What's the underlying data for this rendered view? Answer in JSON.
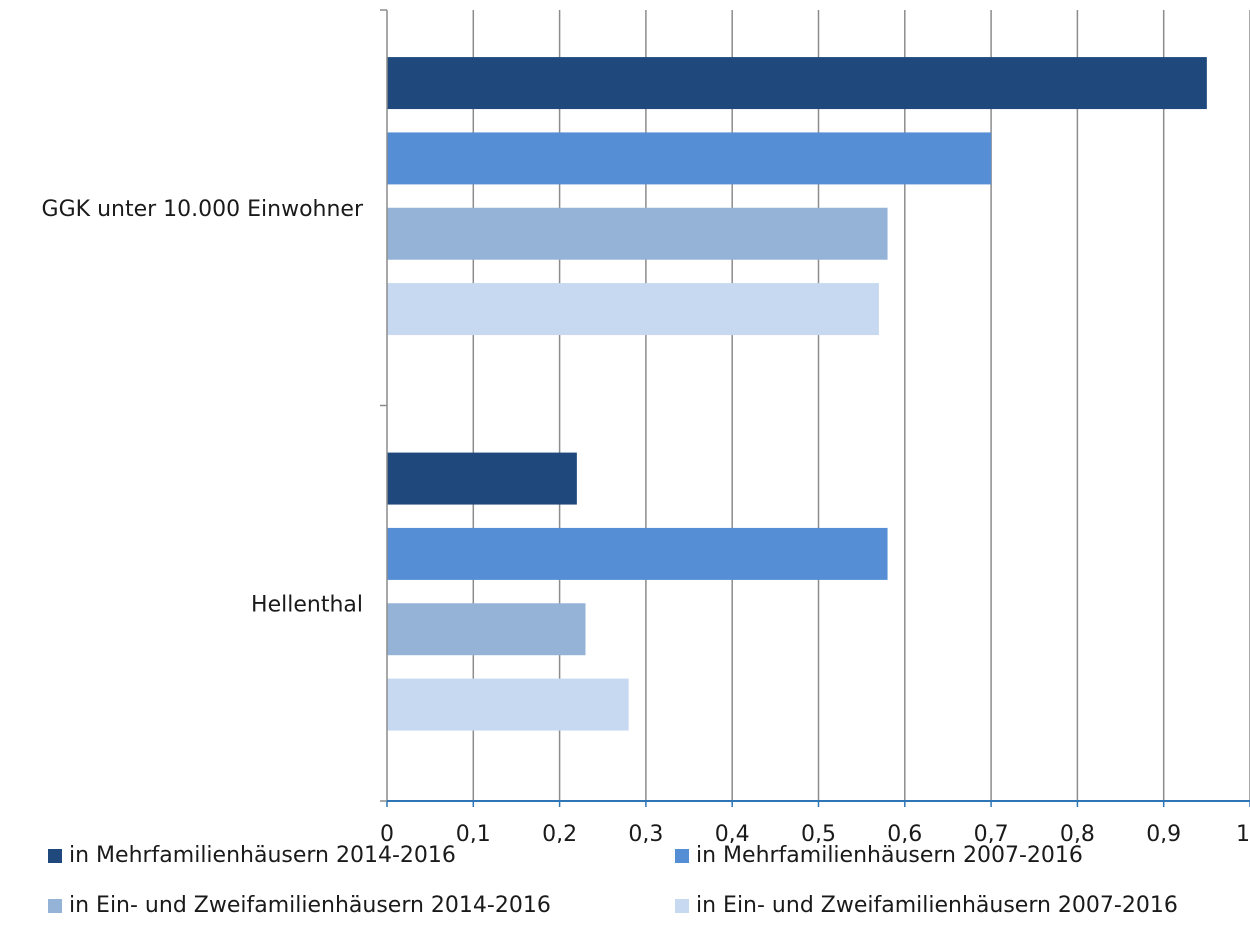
{
  "chart_data": {
    "type": "bar",
    "orientation": "horizontal",
    "categories": [
      "GGK unter 10.000 Einwohner",
      "Hellenthal"
    ],
    "series": [
      {
        "name": "in Mehrfamilienhäusern 2014-2016",
        "color": "#1f497d",
        "values": [
          0.95,
          0.22
        ]
      },
      {
        "name": "in Mehrfamilienhäusern 2007-2016",
        "color": "#558ed5",
        "values": [
          0.7,
          0.58
        ]
      },
      {
        "name": "in Ein- und Zweifamilienhäusern 2014-2016",
        "color": "#95b3d7",
        "values": [
          0.58,
          0.23
        ]
      },
      {
        "name": "in Ein- und Zweifamilienhäusern 2007-2016",
        "color": "#c6d9f1",
        "values": [
          0.57,
          0.28
        ]
      }
    ],
    "xlim": [
      0,
      1
    ],
    "xticks": [
      "0",
      "0,1",
      "0,2",
      "0,3",
      "0,4",
      "0,5",
      "0,6",
      "0,7",
      "0,8",
      "0,9",
      "1"
    ],
    "grid": true,
    "legend_position": "bottom",
    "title": "",
    "xlabel": "",
    "ylabel": ""
  }
}
